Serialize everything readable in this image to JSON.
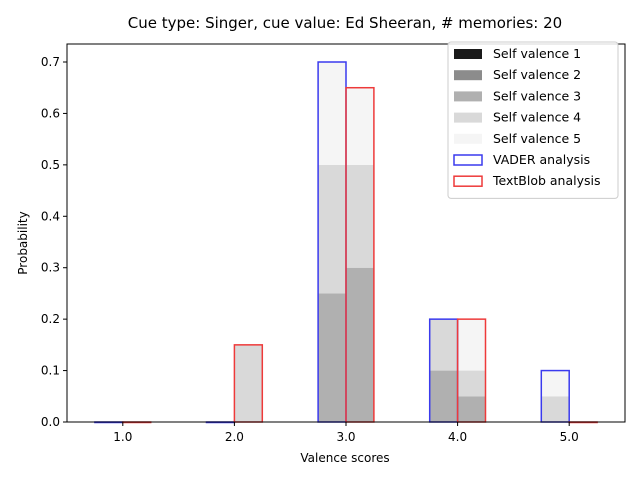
{
  "chart_data": {
    "type": "bar",
    "title": "Cue type: Singer, cue value: Ed Sheeran, # memories: 20",
    "xlabel": "Valence scores",
    "ylabel": "Probability",
    "categories": [
      "1.0",
      "2.0",
      "3.0",
      "4.0",
      "5.0"
    ],
    "x": [
      1,
      2,
      3,
      4,
      5
    ],
    "xlim": [
      0.5,
      5.5
    ],
    "ylim": [
      0,
      0.735
    ],
    "yticks": [
      0.0,
      0.1,
      0.2,
      0.3,
      0.4,
      0.5,
      0.6,
      0.7
    ],
    "ytick_labels": [
      "0.0",
      "0.1",
      "0.2",
      "0.3",
      "0.4",
      "0.5",
      "0.6",
      "0.7"
    ],
    "grid": false,
    "legend_position": "top-right",
    "group_half_width": 0.25,
    "series": [
      {
        "name": "VADER analysis",
        "kind": "outline",
        "color": "#3a3aee",
        "offset": -1,
        "values": [
          0.0,
          0.0,
          0.7,
          0.2,
          0.1
        ]
      },
      {
        "name": "TextBlob analysis",
        "kind": "outline",
        "color": "#ee3a3a",
        "offset": 1,
        "values": [
          0.0,
          0.15,
          0.65,
          0.2,
          0.0
        ]
      }
    ],
    "self_valence": [
      {
        "name": "Self valence 1",
        "color": "#1a1a1a",
        "vader": [
          0,
          0,
          0,
          0,
          0
        ],
        "textblob": [
          0,
          0,
          0,
          0,
          0
        ]
      },
      {
        "name": "Self valence 2",
        "color": "#8c8c8c",
        "vader": [
          0,
          0,
          0,
          0,
          0
        ],
        "textblob": [
          0,
          0,
          0,
          0,
          0
        ]
      },
      {
        "name": "Self valence 3",
        "color": "#b0b0b0",
        "vader": [
          0,
          0,
          0.25,
          0.1,
          0
        ],
        "textblob": [
          0,
          0,
          0.3,
          0.05,
          0
        ]
      },
      {
        "name": "Self valence 4",
        "color": "#d9d9d9",
        "vader": [
          0,
          0,
          0.25,
          0.1,
          0.05
        ],
        "textblob": [
          0,
          0.15,
          0.2,
          0.05,
          0
        ]
      },
      {
        "name": "Self valence 5",
        "color": "#f5f5f5",
        "vader": [
          0,
          0,
          0.2,
          0,
          0.05
        ],
        "textblob": [
          0,
          0,
          0.15,
          0.1,
          0
        ]
      }
    ]
  }
}
